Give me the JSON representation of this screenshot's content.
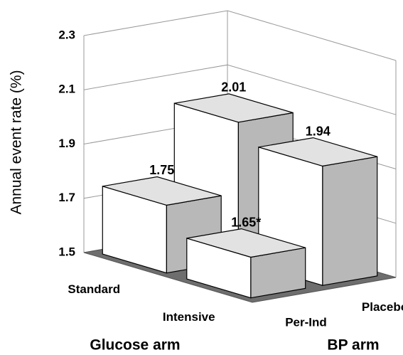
{
  "chart_data": {
    "type": "bar3d",
    "ylabel": "Annual event rate (%)",
    "xlabel": "Glucose arm",
    "zlabel": "BP arm",
    "x_categories": [
      "Standard",
      "Intensive"
    ],
    "z_categories": [
      "Per-Ind",
      "Placebo"
    ],
    "values": [
      [
        1.75,
        2.01
      ],
      [
        1.65,
        1.94
      ]
    ],
    "value_labels": [
      [
        "1.75",
        "2.01"
      ],
      [
        "1.65*",
        "1.94"
      ]
    ],
    "ylim": [
      1.5,
      2.3
    ],
    "yticks": [
      1.5,
      1.7,
      1.9,
      2.1,
      2.3
    ],
    "grid": true,
    "floor_color": "#6e6e6e",
    "face_colors": {
      "front": "#ffffff",
      "side": "#b8b8b8",
      "top": "#e2e2e2"
    }
  }
}
